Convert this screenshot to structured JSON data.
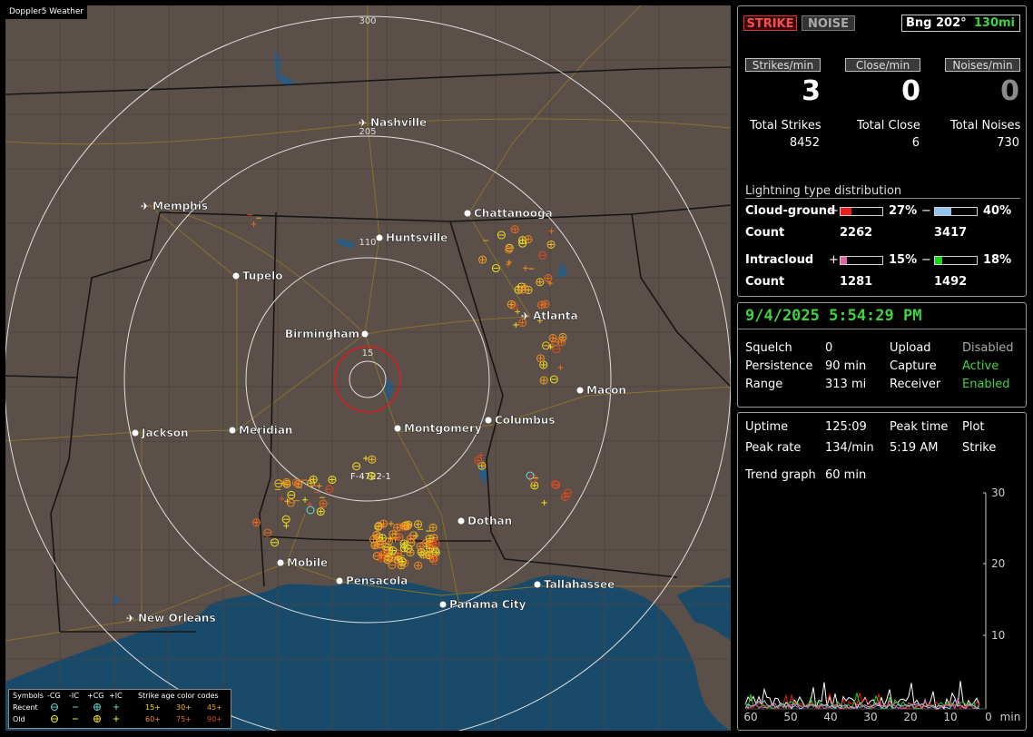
{
  "app_title": "Doppler5 Weather",
  "map": {
    "ring_labels": [
      "15",
      "110",
      "205",
      "300"
    ],
    "site_label": "F-4722-1",
    "cities": [
      {
        "name": "Nashville",
        "airport": true
      },
      {
        "name": "Memphis",
        "airport": true
      },
      {
        "name": "Chattanooga",
        "airport": false
      },
      {
        "name": "Huntsville",
        "airport": false
      },
      {
        "name": "Tupelo",
        "airport": false
      },
      {
        "name": "Atlanta",
        "airport": true
      },
      {
        "name": "Birmingham",
        "airport": false
      },
      {
        "name": "Macon",
        "airport": false
      },
      {
        "name": "Jackson",
        "airport": false
      },
      {
        "name": "Meridian",
        "airport": false
      },
      {
        "name": "Montgomery",
        "airport": false
      },
      {
        "name": "Columbus",
        "airport": false
      },
      {
        "name": "Dothan",
        "airport": false
      },
      {
        "name": "Mobile",
        "airport": false
      },
      {
        "name": "Pensacola",
        "airport": false
      },
      {
        "name": "Tallahassee",
        "airport": false
      },
      {
        "name": "Panama City",
        "airport": false
      },
      {
        "name": "New Orleans",
        "airport": true
      }
    ],
    "legend": {
      "symbols_label": "Symbols",
      "col_neg_cg": "-CG",
      "col_neg_ic": "-IC",
      "col_pos_cg": "+CG",
      "col_pos_ic": "+IC",
      "recent_label": "Recent",
      "old_label": "Old",
      "age_title": "Strike age color codes",
      "age_recent": [
        "15+",
        "30+",
        "45+"
      ],
      "age_old": [
        "60+",
        "75+",
        "90+"
      ]
    }
  },
  "stats": {
    "strike_button": "STRIKE",
    "noise_button": "NOISE",
    "bearing": "Bng 202°",
    "bearing_distance": "130mi",
    "strikes_per_min_label": "Strikes/min",
    "close_per_min_label": "Close/min",
    "noises_per_min_label": "Noises/min",
    "strikes_per_min": "3",
    "close_per_min": "0",
    "noises_per_min": "0",
    "total_strikes_label": "Total Strikes",
    "total_close_label": "Total Close",
    "total_noises_label": "Total Noises",
    "total_strikes": "8452",
    "total_close": "6",
    "total_noises": "730",
    "dist_title": "Lightning type distribution",
    "cg_label": "Cloud-ground",
    "ic_label": "Intracloud",
    "count_label": "Count",
    "plus": "+",
    "minus": "−",
    "cg_pos_pct": "27%",
    "cg_neg_pct": "40%",
    "cg_pos_count": "2262",
    "cg_neg_count": "3417",
    "ic_pos_pct": "15%",
    "ic_neg_pct": "18%",
    "ic_pos_count": "1281",
    "ic_neg_count": "1492",
    "cg_pos_frac": 0.27,
    "cg_neg_frac": 0.4,
    "ic_pos_frac": 0.15,
    "ic_neg_frac": 0.18
  },
  "status": {
    "datetime": "9/4/2025 5:54:29 PM",
    "squelch_label": "Squelch",
    "squelch": "0",
    "persistence_label": "Persistence",
    "persistence": "90 min",
    "range_label": "Range",
    "range": "313 mi",
    "upload_label": "Upload",
    "upload": "Disabled",
    "capture_label": "Capture",
    "capture": "Active",
    "receiver_label": "Receiver",
    "receiver": "Enabled"
  },
  "trend": {
    "uptime_label": "Uptime",
    "uptime": "125:09",
    "peak_time_label": "Peak time",
    "peak_time": "5:19 AM",
    "plot_label": "Plot",
    "peak_rate_label": "Peak rate",
    "peak_rate": "134/min",
    "plot_value": "Strike",
    "trend_graph_label": "Trend graph",
    "trend_graph": "60 min",
    "x_ticks": [
      "60",
      "50",
      "40",
      "30",
      "20",
      "10",
      "0"
    ],
    "x_unit": "min",
    "y_ticks": [
      "30",
      "20",
      "10"
    ]
  },
  "colors": {
    "map_land": "#5a4f49",
    "water": "#1a4a6a",
    "active": "#3fd43f",
    "cg_pos": "#e61e1e",
    "cg_neg": "#8fc4ee",
    "ic_pos": "#e060a0",
    "ic_neg": "#1fd11f"
  }
}
